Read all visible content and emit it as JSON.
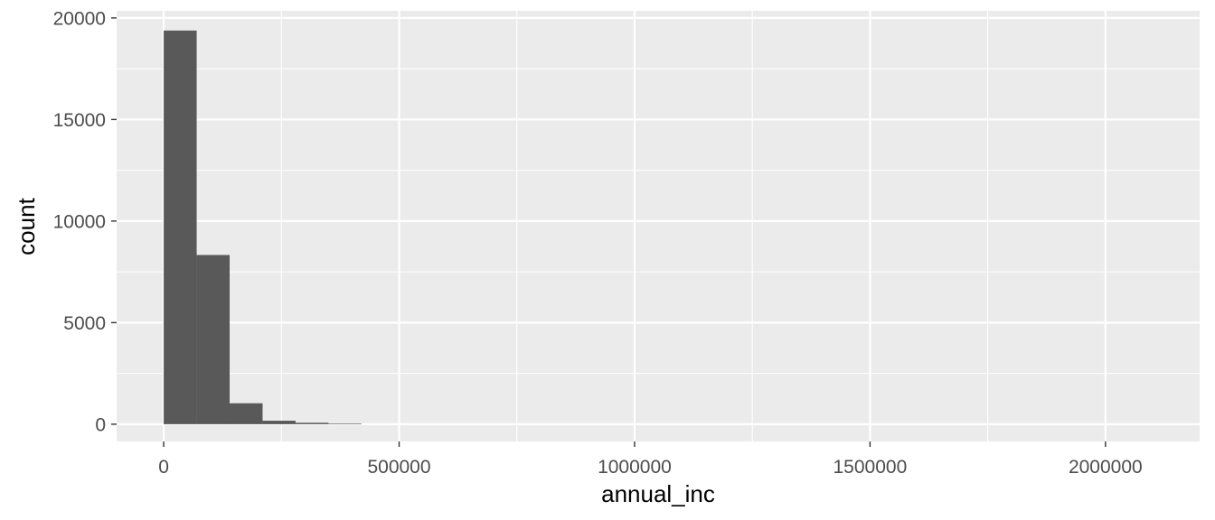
{
  "chart_data": {
    "type": "bar",
    "subtype": "histogram",
    "title": "",
    "xlabel": "annual_inc",
    "ylabel": "count",
    "xlim": [
      -100000,
      2200000
    ],
    "ylim": [
      -850,
      20350
    ],
    "x_ticks": [
      0,
      500000,
      1000000,
      1500000,
      2000000
    ],
    "x_tick_labels": [
      "0",
      "500000",
      "1000000",
      "1500000",
      "2000000"
    ],
    "y_ticks": [
      0,
      5000,
      10000,
      15000,
      20000
    ],
    "y_tick_labels": [
      "0",
      "5000",
      "10000",
      "15000",
      "20000"
    ],
    "bin_width": 70000,
    "bins": [
      {
        "x0": 0,
        "x1": 70000,
        "count": 19380
      },
      {
        "x0": 70000,
        "x1": 140000,
        "count": 8330
      },
      {
        "x0": 140000,
        "x1": 210000,
        "count": 1030
      },
      {
        "x0": 210000,
        "x1": 280000,
        "count": 170
      },
      {
        "x0": 280000,
        "x1": 350000,
        "count": 70
      },
      {
        "x0": 350000,
        "x1": 420000,
        "count": 30
      }
    ],
    "grid": true,
    "legend": "none",
    "colors": {
      "panel": "#ebebeb",
      "grid": "#ffffff",
      "bar": "#595959",
      "tick_label": "#4d4d4d",
      "axis_title": "#000000"
    }
  }
}
